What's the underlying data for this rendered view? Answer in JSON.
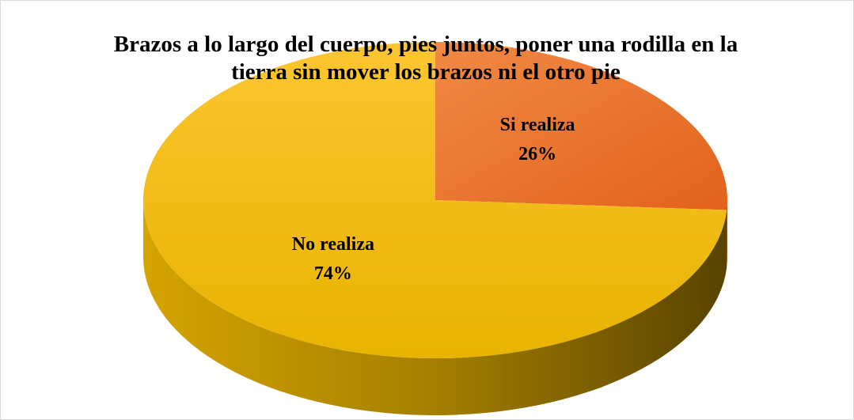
{
  "chart_data": {
    "type": "pie",
    "title": "Brazos a lo largo del cuerpo, pies juntos, poner una rodilla en la tierra sin mover los brazos ni el otro pie",
    "categories": [
      "Si realiza",
      "No realiza"
    ],
    "values": [
      26,
      74
    ],
    "value_labels": [
      "26%",
      "74%"
    ],
    "colors": [
      "#ed7d31",
      "#ffc000"
    ]
  }
}
